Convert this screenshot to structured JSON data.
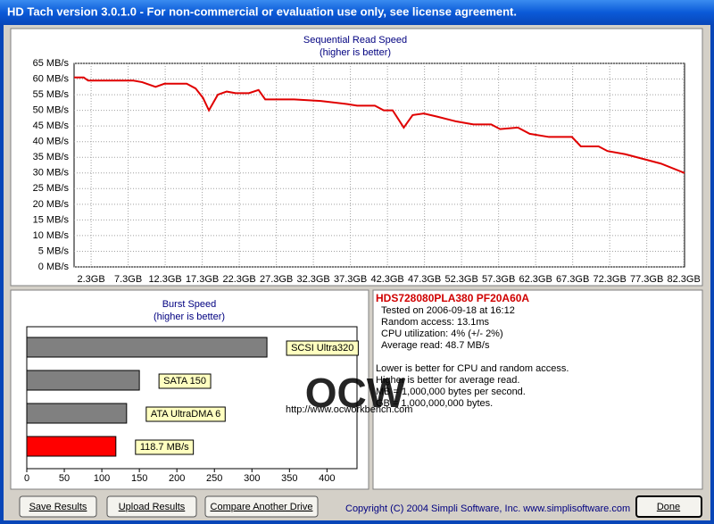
{
  "window_title": "HD Tach version 3.0.1.0  - For non-commercial or evaluation use only, see license agreement.",
  "read_chart": {
    "type": "line",
    "title": "Sequential Read Speed",
    "subtitle": "(higher is better)",
    "series": [
      {
        "color": "#e00000",
        "x": [
          0,
          1.3,
          1.9,
          8.0,
          9.2,
          10.4,
          11.0,
          12.2,
          15.2,
          16.4,
          17.4,
          18.2,
          19.4,
          20.6,
          21.8,
          23.6,
          24.9,
          25.8,
          29.7,
          33.3,
          36.9,
          38.2,
          40.6,
          41.8,
          43.0,
          44.5,
          45.7,
          47.2,
          49.0,
          51.5,
          53.9,
          56.3,
          57.5,
          59.9,
          61.5,
          64.1,
          67.2,
          68.4,
          70.8,
          72.0,
          74.4,
          76.8,
          79.2,
          82.4
        ],
        "values": [
          60.5,
          60.5,
          59.5,
          59.5,
          59,
          58,
          57.5,
          58.5,
          58.5,
          57,
          54,
          50,
          55,
          56,
          55.5,
          55.5,
          56.5,
          53.5,
          53.5,
          53,
          52,
          51.5,
          51.5,
          50,
          50,
          44.5,
          48.5,
          49,
          48,
          46.5,
          45.5,
          45.5,
          44,
          44.5,
          42.5,
          41.5,
          41.5,
          38.5,
          38.5,
          37,
          36,
          34.5,
          33,
          30
        ]
      }
    ],
    "xlim": [
      0,
      82.4
    ],
    "xticks": [
      {
        "value": 2.3,
        "label": "2.3GB"
      },
      {
        "value": 7.3,
        "label": "7.3GB"
      },
      {
        "value": 12.3,
        "label": "12.3GB"
      },
      {
        "value": 17.3,
        "label": "17.3GB"
      },
      {
        "value": 22.3,
        "label": "22.3GB"
      },
      {
        "value": 27.3,
        "label": "27.3GB"
      },
      {
        "value": 32.3,
        "label": "32.3GB"
      },
      {
        "value": 37.3,
        "label": "37.3GB"
      },
      {
        "value": 42.3,
        "label": "42.3GB"
      },
      {
        "value": 47.3,
        "label": "47.3GB"
      },
      {
        "value": 52.3,
        "label": "52.3GB"
      },
      {
        "value": 57.3,
        "label": "57.3GB"
      },
      {
        "value": 62.3,
        "label": "62.3GB"
      },
      {
        "value": 67.3,
        "label": "67.3GB"
      },
      {
        "value": 72.3,
        "label": "72.3GB"
      },
      {
        "value": 77.3,
        "label": "77.3GB"
      },
      {
        "value": 82.3,
        "label": "82.3GB"
      }
    ],
    "ylim": [
      0,
      65
    ],
    "yticks": [
      {
        "value": 0,
        "label": "0 MB/s"
      },
      {
        "value": 5,
        "label": "5 MB/s"
      },
      {
        "value": 10,
        "label": "10 MB/s"
      },
      {
        "value": 15,
        "label": "15 MB/s"
      },
      {
        "value": 20,
        "label": "20 MB/s"
      },
      {
        "value": 25,
        "label": "25 MB/s"
      },
      {
        "value": 30,
        "label": "30 MB/s"
      },
      {
        "value": 35,
        "label": "35 MB/s"
      },
      {
        "value": 40,
        "label": "40 MB/s"
      },
      {
        "value": 45,
        "label": "45 MB/s"
      },
      {
        "value": 50,
        "label": "50 MB/s"
      },
      {
        "value": 55,
        "label": "55 MB/s"
      },
      {
        "value": 60,
        "label": "60 MB/s"
      },
      {
        "value": 65,
        "label": "65 MB/s"
      }
    ],
    "grid": true
  },
  "burst_chart": {
    "type": "hbar",
    "title": "Burst Speed",
    "subtitle": "(higher is better)",
    "categories": [
      "SCSI Ultra320",
      "SATA 150",
      "ATA UltraDMA 6",
      null
    ],
    "values": [
      320,
      150,
      133,
      118.7
    ],
    "value_labels": [
      null,
      null,
      null,
      "118.7 MB/s"
    ],
    "colors": [
      "#808080",
      "#808080",
      "#808080",
      "#ff0000"
    ],
    "xlim": [
      0,
      440
    ],
    "xticks": [
      0,
      50,
      100,
      150,
      200,
      250,
      300,
      350,
      400
    ]
  },
  "watermark": {
    "logo": "OCW",
    "url": "http://www.ocworkbench.com"
  },
  "info": {
    "drive": "HDS728080PLA380 PF20A60A",
    "results": [
      "Tested on 2006-09-18 at 16:12",
      "Random access: 13.1ms",
      "CPU utilization: 4% (+/- 2%)",
      "Average read: 48.7 MB/s"
    ],
    "notes": [
      "Lower is better for CPU and random access.",
      "Higher is better for average read.",
      "MB = 1,000,000 bytes per second.",
      "GB = 1,000,000,000 bytes."
    ]
  },
  "buttons": [
    "Save Results",
    "Upload Results",
    "Compare Another Drive"
  ],
  "copyright": "Copyright (C) 2004 Simpli Software, Inc. www.simplisoftware.com",
  "done": "Done"
}
